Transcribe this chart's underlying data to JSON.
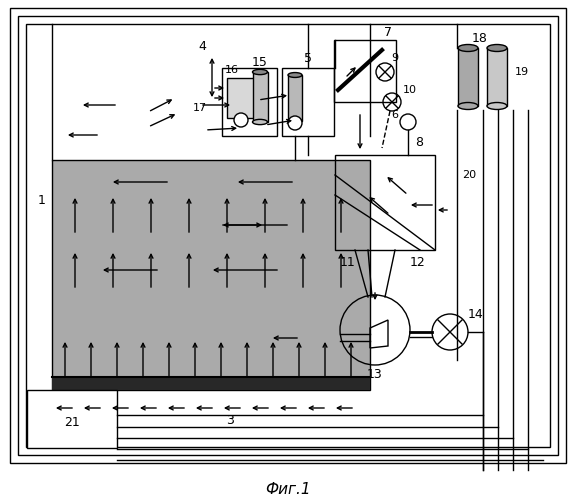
{
  "fig_width": 5.77,
  "fig_height": 5.0,
  "dpi": 100,
  "bg_color": "#ffffff",
  "title": "Фиг.1",
  "gray_color": "#aaaaaa",
  "dark_bar_color": "#282828",
  "cyl_color1": "#b0b0b0",
  "cyl_color2": "#d0d0d0",
  "cyl_dark": "#808080"
}
